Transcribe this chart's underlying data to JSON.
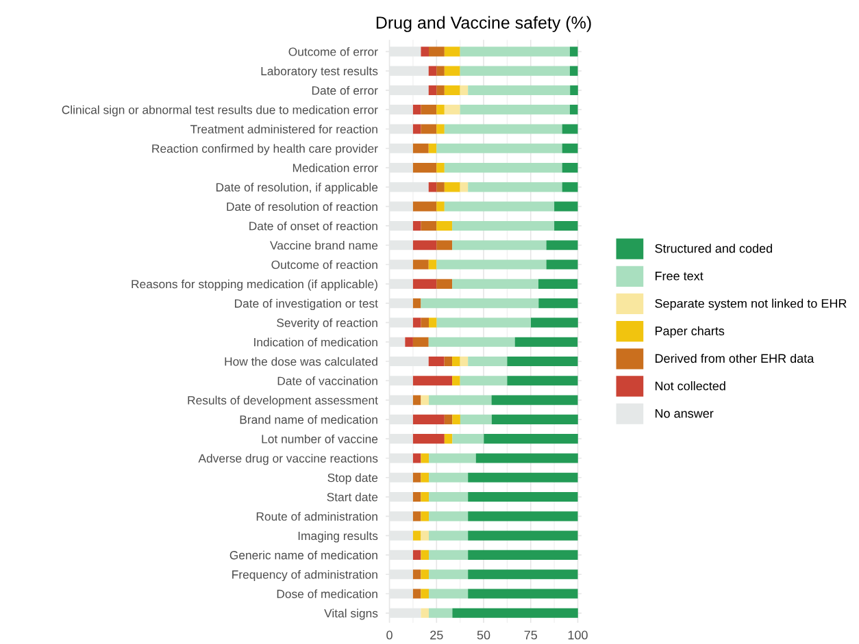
{
  "chart_data": {
    "type": "bar",
    "title": "Drug and Vaccine safety (%)",
    "orientation": "horizontal",
    "stacked": true,
    "grid": true,
    "legend": "right",
    "categories": [
      "Outcome of error",
      "Laboratory test results",
      "Date of error",
      "Clinical sign or abnormal test results due to medication error",
      "Treatment administered for reaction",
      "Reaction confirmed by health care provider",
      "Medication error",
      "Date of resolution, if applicable",
      "Date of resolution of reaction",
      "Date of onset of reaction",
      "Vaccine brand name",
      "Outcome of reaction",
      "Reasons for stopping medication (if applicable)",
      "Date of investigation or test",
      "Severity of reaction",
      "Indication of medication",
      "How the dose was calculated",
      "Date of vaccination",
      "Results of development assessment",
      "Brand name of medication",
      "Lot number of vaccine",
      "Adverse drug or vaccine reactions",
      "Stop date",
      "Start date",
      "Route of administration",
      "Imaging results",
      "Generic name of medication",
      "Frequency of administration",
      "Dose of medication",
      "Vital signs"
    ],
    "xlim": [
      -2,
      102
    ],
    "xticks": [
      0,
      25,
      50,
      75,
      100
    ],
    "series": [
      {
        "name": "No answer",
        "color": "#e5e8e8",
        "values": [
          16.7,
          20.8,
          20.8,
          12.5,
          12.5,
          12.5,
          12.5,
          20.8,
          12.5,
          12.5,
          12.5,
          12.5,
          12.5,
          12.5,
          12.5,
          8.3,
          20.8,
          12.5,
          12.5,
          12.5,
          12.5,
          12.5,
          12.5,
          12.5,
          12.5,
          12.5,
          12.5,
          12.5,
          12.5,
          16.7
        ]
      },
      {
        "name": "Not collected",
        "color": "#cb4335",
        "values": [
          4.2,
          4.2,
          4.2,
          4.2,
          4.2,
          0,
          0,
          4.2,
          0,
          4.2,
          12.5,
          0,
          12.5,
          0,
          4.2,
          4.2,
          8.3,
          20.8,
          0,
          16.7,
          16.7,
          4.2,
          0,
          0,
          0,
          0,
          4.2,
          0,
          0,
          0
        ]
      },
      {
        "name": "Derived from other EHR data",
        "color": "#ca6f1e",
        "values": [
          8.3,
          4.2,
          4.2,
          8.3,
          8.3,
          8.3,
          12.5,
          4.2,
          12.5,
          8.3,
          8.3,
          8.3,
          8.3,
          4.2,
          4.2,
          8.3,
          4.2,
          0,
          4.2,
          4.2,
          0,
          0,
          4.2,
          4.2,
          4.2,
          0,
          0,
          4.2,
          4.2,
          0
        ]
      },
      {
        "name": "Paper charts",
        "color": "#f1c40f",
        "values": [
          8.3,
          8.3,
          8.3,
          4.2,
          4.2,
          4.2,
          4.2,
          8.3,
          4.2,
          8.3,
          0,
          4.2,
          0,
          0,
          4.2,
          0,
          4.2,
          4.2,
          0,
          4.2,
          4.2,
          4.2,
          4.2,
          4.2,
          4.2,
          4.2,
          4.2,
          4.2,
          4.2,
          0
        ]
      },
      {
        "name": "Separate system not linked to EHR",
        "color": "#f9e79f",
        "values": [
          0,
          0,
          4.2,
          8.3,
          0,
          0,
          0,
          4.2,
          0,
          0,
          0,
          0,
          0,
          0,
          0,
          0,
          4.2,
          0,
          4.2,
          0,
          0,
          0,
          0,
          0,
          0,
          4.2,
          0,
          0,
          0,
          4.2
        ]
      },
      {
        "name": "Free text",
        "color": "#a9dfbf",
        "values": [
          58.3,
          58.3,
          54.2,
          58.3,
          62.5,
          66.7,
          62.5,
          50,
          58.3,
          54.2,
          50,
          58.3,
          45.8,
          62.5,
          50,
          45.8,
          20.8,
          25,
          33.3,
          16.7,
          16.7,
          25,
          20.8,
          20.8,
          20.8,
          20.8,
          20.8,
          20.8,
          20.8,
          12.5
        ]
      },
      {
        "name": "Structured and coded",
        "color": "#239b56",
        "values": [
          4.2,
          4.2,
          4.2,
          4.2,
          8.3,
          8.3,
          8.3,
          8.3,
          12.5,
          12.5,
          16.7,
          16.7,
          20.8,
          20.8,
          25,
          33.3,
          37.5,
          37.5,
          45.8,
          45.8,
          50,
          54.2,
          58.3,
          58.3,
          58.3,
          58.3,
          58.3,
          58.3,
          58.3,
          66.7
        ]
      }
    ]
  }
}
